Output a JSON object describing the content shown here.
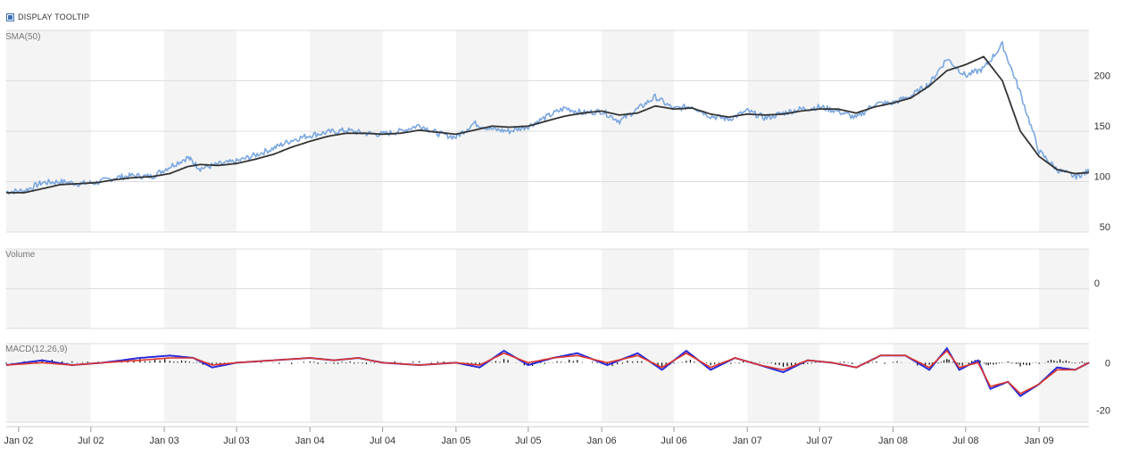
{
  "tooltip": {
    "label": "DISPLAY TOOLTIP",
    "checked": true
  },
  "colors": {
    "price": "#7ba7e0",
    "sma": "#333333",
    "macd": "#2b2bd9",
    "signal": "#e0352b",
    "histogram": "#000000",
    "band": "#f4f4f4",
    "grid": "#dddddd"
  },
  "chart_data": [
    {
      "type": "line",
      "panel": "price",
      "title": "SMA(50)",
      "x_range": [
        "2001-12-01",
        "2009-05-06"
      ],
      "ylim": [
        50,
        250
      ],
      "yticks": [
        50,
        100,
        150,
        200
      ],
      "xticks": [
        "Jan 02",
        "Jul 02",
        "Jan 03",
        "Jul 03",
        "Jan 04",
        "Jul 04",
        "Jan 05",
        "Jul 05",
        "Jan 06",
        "Jul 06",
        "Jan 07",
        "Jul 07",
        "Jan 08",
        "Jul 08",
        "Jan 09"
      ],
      "grid": true,
      "series": [
        {
          "role": "price",
          "x": [
            "2001-12-01",
            "2002-01-15",
            "2002-03-01",
            "2002-04-15",
            "2002-06-01",
            "2002-07-15",
            "2002-09-01",
            "2002-10-15",
            "2002-12-01",
            "2003-01-15",
            "2003-03-01",
            "2003-04-01",
            "2003-05-15",
            "2003-07-01",
            "2003-08-15",
            "2003-10-01",
            "2003-11-15",
            "2004-01-01",
            "2004-02-15",
            "2004-04-01",
            "2004-05-15",
            "2004-07-01",
            "2004-08-15",
            "2004-10-01",
            "2004-11-15",
            "2005-01-01",
            "2005-02-15",
            "2005-04-01",
            "2005-05-15",
            "2005-07-01",
            "2005-08-15",
            "2005-10-01",
            "2005-11-15",
            "2006-01-01",
            "2006-02-15",
            "2006-04-01",
            "2006-05-15",
            "2006-07-01",
            "2006-08-15",
            "2006-10-01",
            "2006-11-15",
            "2007-01-01",
            "2007-02-15",
            "2007-04-01",
            "2007-05-15",
            "2007-07-01",
            "2007-08-15",
            "2007-10-01",
            "2007-11-15",
            "2008-01-01",
            "2008-02-15",
            "2008-04-01",
            "2008-05-15",
            "2008-07-01",
            "2008-08-15",
            "2008-10-01",
            "2008-11-15",
            "2009-01-01",
            "2009-02-15",
            "2009-04-01",
            "2009-05-06"
          ],
          "values": [
            90,
            91,
            99,
            100,
            98,
            99,
            104,
            106,
            105,
            115,
            124,
            113,
            117,
            120,
            126,
            133,
            141,
            146,
            149,
            151,
            148,
            147,
            150,
            156,
            148,
            144,
            158,
            152,
            150,
            155,
            164,
            173,
            168,
            170,
            160,
            172,
            184,
            172,
            175,
            165,
            162,
            170,
            163,
            168,
            172,
            174,
            170,
            163,
            177,
            178,
            185,
            197,
            222,
            205,
            212,
            236,
            188,
            130,
            112,
            105,
            110
          ]
        },
        {
          "role": "sma",
          "x": [
            "2001-12-01",
            "2002-01-15",
            "2002-03-01",
            "2002-04-15",
            "2002-06-01",
            "2002-07-15",
            "2002-09-01",
            "2002-10-15",
            "2002-12-01",
            "2003-01-15",
            "2003-03-01",
            "2003-04-01",
            "2003-05-15",
            "2003-07-01",
            "2003-08-15",
            "2003-10-01",
            "2003-11-15",
            "2004-01-01",
            "2004-02-15",
            "2004-04-01",
            "2004-05-15",
            "2004-07-01",
            "2004-08-15",
            "2004-10-01",
            "2004-11-15",
            "2005-01-01",
            "2005-02-15",
            "2005-04-01",
            "2005-05-15",
            "2005-07-01",
            "2005-08-15",
            "2005-10-01",
            "2005-11-15",
            "2006-01-01",
            "2006-02-15",
            "2006-04-01",
            "2006-05-15",
            "2006-07-01",
            "2006-08-15",
            "2006-10-01",
            "2006-11-15",
            "2007-01-01",
            "2007-02-15",
            "2007-04-01",
            "2007-05-15",
            "2007-07-01",
            "2007-08-15",
            "2007-10-01",
            "2007-11-15",
            "2008-01-01",
            "2008-02-15",
            "2008-04-01",
            "2008-05-15",
            "2008-07-01",
            "2008-08-15",
            "2008-10-01",
            "2008-11-15",
            "2009-01-01",
            "2009-02-15",
            "2009-04-01",
            "2009-05-06"
          ],
          "values": [
            89,
            89,
            93,
            97,
            98,
            99,
            102,
            104,
            105,
            108,
            115,
            117,
            116,
            118,
            122,
            127,
            134,
            140,
            145,
            148,
            148,
            147,
            148,
            151,
            149,
            147,
            151,
            155,
            154,
            155,
            160,
            165,
            168,
            170,
            166,
            168,
            175,
            172,
            173,
            167,
            164,
            167,
            166,
            167,
            170,
            172,
            172,
            168,
            174,
            178,
            183,
            195,
            210,
            216,
            224,
            200,
            150,
            125,
            112,
            108,
            109
          ]
        }
      ]
    },
    {
      "type": "bar",
      "panel": "volume",
      "title": "Volume",
      "yticks": [
        0
      ],
      "values": []
    },
    {
      "type": "line",
      "panel": "macd",
      "title": "MACD(12,26,9)",
      "ylim": [
        -25,
        8
      ],
      "yticks": [
        0,
        -20
      ],
      "series": [
        {
          "role": "macd",
          "x": [
            "2001-12-01",
            "2002-03-01",
            "2002-05-15",
            "2002-08-01",
            "2002-11-01",
            "2003-01-15",
            "2003-03-15",
            "2003-05-01",
            "2003-07-01",
            "2003-10-01",
            "2004-01-01",
            "2004-03-01",
            "2004-05-01",
            "2004-07-01",
            "2004-10-01",
            "2005-01-01",
            "2005-03-01",
            "2005-05-01",
            "2005-07-01",
            "2005-09-01",
            "2005-11-01",
            "2006-01-15",
            "2006-04-01",
            "2006-06-01",
            "2006-08-01",
            "2006-10-01",
            "2006-12-01",
            "2007-02-01",
            "2007-04-01",
            "2007-06-01",
            "2007-08-01",
            "2007-10-01",
            "2007-12-01",
            "2008-02-01",
            "2008-04-01",
            "2008-05-15",
            "2008-06-15",
            "2008-08-01",
            "2008-09-01",
            "2008-10-15",
            "2008-11-15",
            "2009-01-01",
            "2009-02-15",
            "2009-04-01",
            "2009-05-06"
          ],
          "values": [
            -1,
            1,
            -1,
            0,
            2,
            3,
            2,
            -2,
            0,
            1,
            2,
            1,
            2,
            0,
            -1,
            0,
            -2,
            5,
            -1,
            2,
            4,
            -1,
            4,
            -3,
            5,
            -3,
            2,
            -1,
            -4,
            1,
            0,
            -2,
            3,
            3,
            -3,
            6,
            -3,
            1,
            -11,
            -8,
            -14,
            -9,
            -2,
            -3,
            0
          ]
        },
        {
          "role": "signal",
          "x": [
            "2001-12-01",
            "2002-03-01",
            "2002-05-15",
            "2002-08-01",
            "2002-11-01",
            "2003-01-15",
            "2003-03-15",
            "2003-05-01",
            "2003-07-01",
            "2003-10-01",
            "2004-01-01",
            "2004-03-01",
            "2004-05-01",
            "2004-07-01",
            "2004-10-01",
            "2005-01-01",
            "2005-03-01",
            "2005-05-01",
            "2005-07-01",
            "2005-09-01",
            "2005-11-01",
            "2006-01-15",
            "2006-04-01",
            "2006-06-01",
            "2006-08-01",
            "2006-10-01",
            "2006-12-01",
            "2007-02-01",
            "2007-04-01",
            "2007-06-01",
            "2007-08-01",
            "2007-10-01",
            "2007-12-01",
            "2008-02-01",
            "2008-04-01",
            "2008-05-15",
            "2008-06-15",
            "2008-08-01",
            "2008-09-01",
            "2008-10-15",
            "2008-11-15",
            "2009-01-01",
            "2009-02-15",
            "2009-04-01",
            "2009-05-06"
          ],
          "values": [
            -1,
            0,
            -1,
            0,
            1,
            2,
            2,
            -1,
            0,
            1,
            2,
            1,
            2,
            0,
            -1,
            0,
            -1,
            4,
            0,
            2,
            3,
            0,
            3,
            -2,
            4,
            -2,
            2,
            -1,
            -3,
            1,
            0,
            -2,
            3,
            3,
            -2,
            5,
            -2,
            0,
            -10,
            -8,
            -13,
            -9,
            -3,
            -3,
            0
          ]
        }
      ]
    }
  ]
}
